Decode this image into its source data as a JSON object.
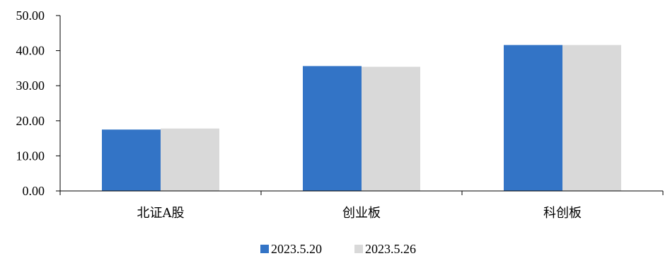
{
  "chart_data": {
    "type": "bar",
    "title": "",
    "xlabel": "",
    "ylabel": "",
    "categories": [
      "北证A股",
      "创业板",
      "科创板"
    ],
    "series": [
      {
        "name": "2023.5.20",
        "values": [
          17.5,
          35.6,
          41.6
        ],
        "color": "#3374C6"
      },
      {
        "name": "2023.5.26",
        "values": [
          17.8,
          35.4,
          41.6
        ],
        "color": "#D9D9D9"
      }
    ],
    "ylim": [
      0,
      50
    ],
    "yticks": [
      "0.00",
      "10.00",
      "20.00",
      "30.00",
      "40.00",
      "50.00"
    ],
    "grid": false,
    "legend_position": "bottom"
  }
}
